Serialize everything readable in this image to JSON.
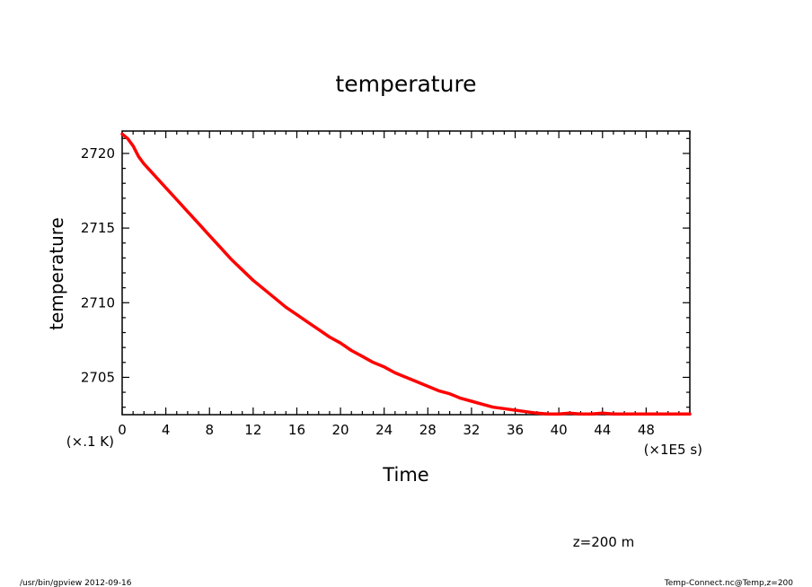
{
  "chart_data": {
    "type": "line",
    "title": "temperature",
    "xlabel": "Time",
    "ylabel": "temperature",
    "x_unit": "(×1E5 s)",
    "y_unit": "(×.1 K)",
    "xlim": [
      0,
      52
    ],
    "ylim": [
      2702.5,
      2721.5
    ],
    "x_ticks": [
      0,
      4,
      8,
      12,
      16,
      20,
      24,
      28,
      32,
      36,
      40,
      44,
      48
    ],
    "y_ticks": [
      2705,
      2710,
      2715,
      2720
    ],
    "grid": false,
    "line_color": "#ff0000",
    "series": [
      {
        "x": [
          0,
          0.5,
          1,
          1.5,
          2,
          3,
          4,
          5,
          6,
          7,
          8,
          9,
          10,
          11,
          12,
          13,
          14,
          15,
          16,
          17,
          18,
          19,
          20,
          21,
          22,
          23,
          24,
          25,
          26,
          27,
          28,
          29,
          30,
          31,
          32,
          33,
          34,
          35,
          36,
          37,
          38,
          39,
          40,
          41,
          42,
          43,
          44,
          45,
          46,
          47,
          48,
          49,
          50,
          51,
          52
        ],
        "y": [
          2721.3,
          2721.0,
          2720.5,
          2719.8,
          2719.3,
          2718.5,
          2717.7,
          2716.9,
          2716.1,
          2715.3,
          2714.5,
          2713.7,
          2712.9,
          2712.2,
          2711.5,
          2710.9,
          2710.3,
          2709.7,
          2709.2,
          2708.7,
          2708.2,
          2707.7,
          2707.3,
          2706.8,
          2706.4,
          2706.0,
          2705.7,
          2705.3,
          2705.0,
          2704.7,
          2704.4,
          2704.1,
          2703.9,
          2703.6,
          2703.4,
          2703.2,
          2703.0,
          2702.9,
          2702.8,
          2702.7,
          2702.6,
          2702.55,
          2702.55,
          2702.6,
          2702.55,
          2702.55,
          2702.6,
          2702.55,
          2702.55,
          2702.55,
          2702.55,
          2702.55,
          2702.55,
          2702.55,
          2702.55
        ]
      }
    ]
  },
  "annotations": {
    "level": "z=200 m",
    "footer_left": "/usr/bin/gpview  2012-09-16",
    "footer_right": "Temp-Connect.nc@Temp,z=200"
  }
}
